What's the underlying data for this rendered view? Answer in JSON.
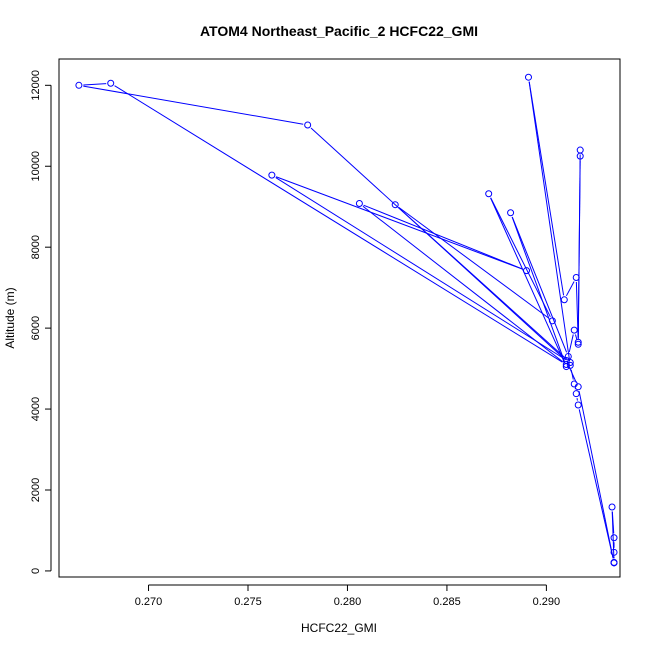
{
  "chart_data": {
    "type": "line",
    "title": "ATOM4 Northeast_Pacific_2 HCFC22_GMI",
    "xlabel": "HCFC22_GMI",
    "ylabel": "Altitude (m)",
    "xlim": [
      0.2655,
      0.2937
    ],
    "ylim": [
      -150,
      12650
    ],
    "x_ticks": [
      0.27,
      0.275,
      0.28,
      0.285,
      0.29
    ],
    "x_tick_labels": [
      "0.270",
      "0.275",
      "0.280",
      "0.285",
      "0.290"
    ],
    "y_ticks": [
      0,
      2000,
      4000,
      6000,
      8000,
      10000,
      12000
    ],
    "y_tick_labels": [
      "0",
      "2000",
      "4000",
      "6000",
      "8000",
      "10000",
      "12000"
    ],
    "grid": false,
    "legend": "none",
    "series_color": "#0000ff",
    "markers": "open-circle",
    "series": [
      {
        "points": [
          {
            "x": 0.2934,
            "y": 200
          },
          {
            "x": 0.2934,
            "y": 460
          },
          {
            "x": 0.2934,
            "y": 820
          },
          {
            "x": 0.2933,
            "y": 1580
          },
          {
            "x": 0.2934,
            "y": 210
          },
          {
            "x": 0.2916,
            "y": 4100
          },
          {
            "x": 0.2915,
            "y": 4380
          },
          {
            "x": 0.2914,
            "y": 4620
          },
          {
            "x": 0.2912,
            "y": 5080
          },
          {
            "x": 0.2891,
            "y": 12200
          },
          {
            "x": 0.2909,
            "y": 6700
          },
          {
            "x": 0.2915,
            "y": 7250
          },
          {
            "x": 0.2916,
            "y": 5650
          },
          {
            "x": 0.2917,
            "y": 10400
          },
          {
            "x": 0.2917,
            "y": 10250
          },
          {
            "x": 0.2916,
            "y": 5600
          },
          {
            "x": 0.2914,
            "y": 5950
          },
          {
            "x": 0.2911,
            "y": 5300
          },
          {
            "x": 0.2882,
            "y": 8850
          },
          {
            "x": 0.291,
            "y": 5050
          },
          {
            "x": 0.2871,
            "y": 9320
          },
          {
            "x": 0.2903,
            "y": 6180
          },
          {
            "x": 0.2824,
            "y": 9050
          },
          {
            "x": 0.2912,
            "y": 5150
          },
          {
            "x": 0.2762,
            "y": 9780
          },
          {
            "x": 0.289,
            "y": 7420
          },
          {
            "x": 0.2806,
            "y": 9080
          },
          {
            "x": 0.291,
            "y": 5100
          },
          {
            "x": 0.2681,
            "y": 12050
          },
          {
            "x": 0.2665,
            "y": 12000
          },
          {
            "x": 0.278,
            "y": 11020
          },
          {
            "x": 0.291,
            "y": 5200
          },
          {
            "x": 0.2916,
            "y": 4550
          },
          {
            "x": 0.2934,
            "y": 200
          }
        ]
      }
    ]
  }
}
